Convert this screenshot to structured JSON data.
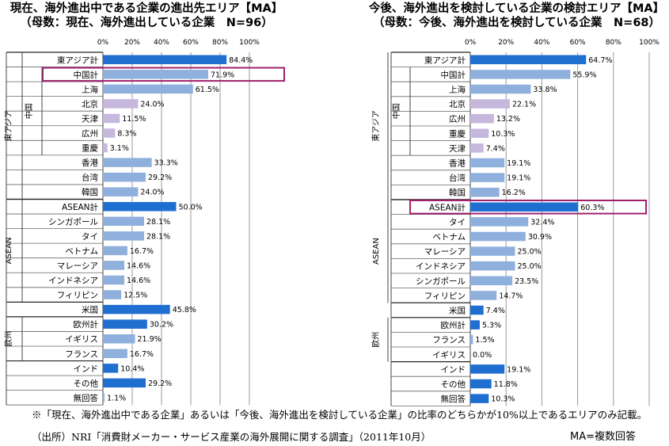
{
  "chart_data": [
    {
      "type": "bar",
      "orientation": "horizontal",
      "title": "現在、海外進出中である企業の進出先エリア【MA】",
      "subtitle": "（母数：現在、海外進出している企業　N=96）",
      "xlim": [
        0,
        100
      ],
      "tick_labels": [
        "0%",
        "20%",
        "40%",
        "60%",
        "80%",
        "100%"
      ],
      "categories": [
        "東アジア計",
        "中国計",
        "上海",
        "北京",
        "天津",
        "広州",
        "重慶",
        "香港",
        "台湾",
        "韓国",
        "ASEAN計",
        "シンガポール",
        "タイ",
        "ベトナム",
        "マレーシア",
        "インドネシア",
        "フィリピン",
        "米国",
        "欧州計",
        "イギリス",
        "フランス",
        "インド",
        "その他",
        "無回答"
      ],
      "values": [
        84.4,
        71.9,
        61.5,
        24.0,
        11.5,
        8.3,
        3.1,
        33.3,
        29.2,
        24.0,
        50.0,
        28.1,
        28.1,
        16.7,
        14.6,
        14.6,
        12.5,
        45.8,
        30.2,
        21.9,
        16.7,
        10.4,
        29.2,
        1.1
      ],
      "value_labels": [
        "84.4%",
        "71.9%",
        "61.5%",
        "24.0%",
        "11.5%",
        "8.3%",
        "3.1%",
        "33.3%",
        "29.2%",
        "24.0%",
        "50.0%",
        "28.1%",
        "28.1%",
        "16.7%",
        "14.6%",
        "14.6%",
        "12.5%",
        "45.8%",
        "30.2%",
        "21.9%",
        "16.7%",
        "10.4%",
        "29.2%",
        "1.1%"
      ],
      "bar_style": [
        "total",
        "light",
        "light",
        "purple",
        "purple",
        "purple",
        "purple",
        "light",
        "light",
        "light",
        "total",
        "light",
        "light",
        "light",
        "light",
        "light",
        "light",
        "total",
        "total",
        "light",
        "light",
        "total",
        "total",
        "light"
      ],
      "highlighted": "中国計",
      "groups": [
        {
          "label": "東アジア",
          "from": 0,
          "to": 9
        },
        {
          "label": "中国",
          "from": 1,
          "to": 6
        },
        {
          "label": "ASEAN",
          "from": 10,
          "to": 16
        },
        {
          "label": "欧州",
          "from": 18,
          "to": 20
        }
      ],
      "grid": true
    },
    {
      "type": "bar",
      "orientation": "horizontal",
      "title": "今後、海外進出を検討している企業の検討エリア【MA】",
      "subtitle": "（母数：今後、海外進出を検討している企業　N=68）",
      "xlim": [
        0,
        100
      ],
      "tick_labels": [
        "0%",
        "20%",
        "40%",
        "60%",
        "80%",
        "100%"
      ],
      "categories": [
        "東アジア計",
        "中国計",
        "上海",
        "北京",
        "広州",
        "重慶",
        "天津",
        "香港",
        "台湾",
        "韓国",
        "ASEAN計",
        "タイ",
        "ベトナム",
        "マレーシア",
        "インドネシア",
        "シンガポール",
        "フィリピン",
        "米国",
        "欧州計",
        "フランス",
        "イギリス",
        "インド",
        "その他",
        "無回答"
      ],
      "values": [
        64.7,
        55.9,
        33.8,
        22.1,
        13.2,
        10.3,
        7.4,
        19.1,
        19.1,
        16.2,
        60.3,
        32.4,
        30.9,
        25.0,
        25.0,
        23.5,
        14.7,
        7.4,
        5.3,
        1.5,
        0.0,
        19.1,
        11.8,
        10.3
      ],
      "value_labels": [
        "64.7%",
        "55.9%",
        "33.8%",
        "22.1%",
        "13.2%",
        "10.3%",
        "7.4%",
        "19.1%",
        "19.1%",
        "16.2%",
        "60.3%",
        "32.4%",
        "30.9%",
        "25.0%",
        "25.0%",
        "23.5%",
        "14.7%",
        "7.4%",
        "5.3%",
        "1.5%",
        "0.0%",
        "19.1%",
        "11.8%",
        "10.3%"
      ],
      "bar_style": [
        "total",
        "light",
        "light",
        "purple",
        "purple",
        "purple",
        "purple",
        "light",
        "light",
        "light",
        "total",
        "light",
        "light",
        "light",
        "light",
        "light",
        "light",
        "total",
        "total",
        "light",
        "light",
        "total",
        "total",
        "total"
      ],
      "highlighted": "ASEAN計",
      "groups": [
        {
          "label": "東アジア",
          "from": 0,
          "to": 9
        },
        {
          "label": "中国",
          "from": 1,
          "to": 6
        },
        {
          "label": "ASEAN",
          "from": 10,
          "to": 16
        },
        {
          "label": "欧州",
          "from": 18,
          "to": 20
        }
      ],
      "grid": true
    }
  ],
  "colors": {
    "total": "#1f6fd1",
    "light": "#8fb0dc",
    "purple": "#c6b7dd",
    "highlight_border": "#a0206e",
    "grid": "#9a9a9a"
  },
  "footnote": "※「現在、海外進出中である企業」あるいは「今後、海外進出を検討している企業」の比率のどちらかが10%以上であるエリアのみ記載。",
  "source": "（出所）NRI「消費財メーカー・サービス産業の海外展開に関する調査」（2011年10月）",
  "ma_note": "MA=複数回答"
}
